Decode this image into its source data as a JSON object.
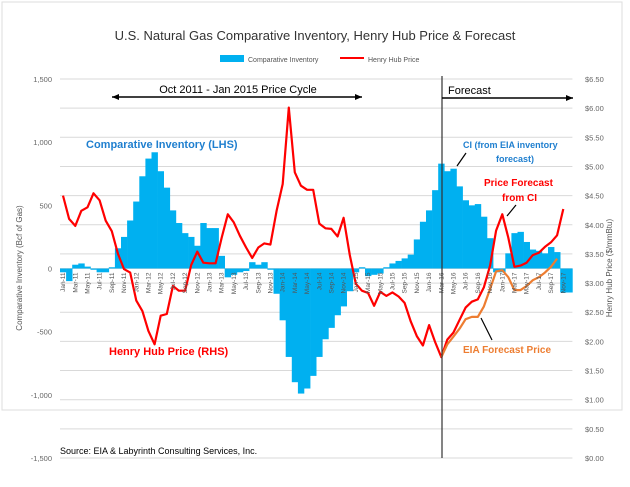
{
  "chart_data": {
    "type": "bar+line",
    "title": "U.S. Natural Gas Comparative Inventory, Henry Hub Price & Forecast",
    "legend": [
      "Comparative Inventory",
      "Henry Hub Price"
    ],
    "legend_placement": "top",
    "ylabel": "Comparative Inventory (Bcf of Gas)",
    "y2label": "Henry Hub Price ($/mmBtu)",
    "ylim": [
      -1500,
      1500
    ],
    "y2lim": [
      0,
      6.5
    ],
    "yticks": [
      "1,500",
      "1,000",
      "500",
      "0",
      "-500",
      "-1,000",
      "-1,500"
    ],
    "y2ticks": [
      "$6.50",
      "$6.00",
      "$5.50",
      "$5.00",
      "$4.50",
      "$4.00",
      "$3.50",
      "$3.00",
      "$2.50",
      "$2.00",
      "$1.50",
      "$1.00",
      "$0.50",
      "$0.00"
    ],
    "start_month": "Jan-11",
    "xtick_labels": [
      "Jan-11",
      "Mar-11",
      "May-11",
      "Jul-11",
      "Sep-11",
      "Nov-11",
      "Jan-12",
      "Mar-12",
      "May-12",
      "Jul-12",
      "Sep-12",
      "Nov-12",
      "Jan-13",
      "Mar-13",
      "May-13",
      "Jul-13",
      "Sep-13",
      "Nov-13",
      "Jan-14",
      "Mar-14",
      "May-14",
      "Jul-14",
      "Sep-14",
      "Nov-14",
      "Jan-15",
      "Mar-15",
      "May-15",
      "Jul-15",
      "Sep-15",
      "Nov-15",
      "Jan-16",
      "Mar-16",
      "May-16",
      "Jul-16",
      "Sep-16",
      "Nov-16",
      "Jan-17",
      "Mar-17",
      "May-17",
      "Jul-17",
      "Sep-17",
      "Nov-17"
    ],
    "series": [
      {
        "name": "Comparative Inventory",
        "color": "#00b0f0",
        "values": [
          -30,
          -100,
          30,
          40,
          15,
          -10,
          -30,
          -30,
          10,
          160,
          250,
          380,
          530,
          730,
          870,
          920,
          770,
          640,
          460,
          360,
          280,
          250,
          180,
          360,
          320,
          320,
          100,
          -70,
          -50,
          -30,
          -20,
          50,
          30,
          50,
          -10,
          -200,
          -410,
          -700,
          -900,
          -990,
          -950,
          -850,
          -700,
          -560,
          -470,
          -370,
          -300,
          -180,
          -30,
          10,
          -60,
          -50,
          -40,
          10,
          40,
          60,
          80,
          110,
          230,
          370,
          460,
          620,
          830,
          770,
          790,
          650,
          540,
          500,
          510,
          410,
          240,
          -30,
          -30,
          120,
          280,
          290,
          210,
          150,
          140,
          120,
          170,
          130,
          -190,
          -190
        ]
      },
      {
        "name": "Henry Hub Price",
        "color": "#ff0000",
        "values": [
          4.5,
          4.1,
          3.98,
          4.24,
          4.3,
          4.54,
          4.42,
          4.07,
          3.89,
          3.5,
          3.24,
          3.18,
          2.7,
          2.52,
          2.18,
          1.95,
          2.44,
          2.47,
          2.95,
          2.87,
          2.87,
          3.31,
          3.54,
          3.35,
          3.34,
          3.34,
          3.78,
          4.18,
          4.04,
          3.81,
          3.61,
          3.43,
          3.61,
          3.68,
          3.66,
          4.24,
          4.7,
          6.01,
          4.9,
          4.67,
          4.6,
          4.6,
          4.02,
          3.94,
          3.93,
          3.8,
          4.12,
          3.48,
          2.99,
          2.87,
          2.83,
          2.61,
          2.85,
          2.78,
          2.84,
          2.77,
          2.66,
          2.34,
          2.09,
          1.93,
          2.28,
          1.99,
          1.73,
          2.03,
          2.15,
          2.37,
          2.58,
          2.68,
          2.72,
          2.93,
          3.3,
          3.9,
          4.18,
          3.78,
          3.28,
          3.3,
          3.35,
          3.48,
          3.52,
          3.62,
          3.7,
          3.82,
          4.27
        ]
      },
      {
        "name": "EIA Forecast Price",
        "color": "#ed7d31",
        "start_index": 62,
        "values": [
          1.73,
          1.95,
          2.08,
          2.22,
          2.38,
          2.42,
          2.42,
          2.6,
          2.9,
          3.2,
          3.22,
          3.1,
          2.88,
          2.88,
          2.95,
          3.05,
          3.1,
          3.18,
          3.28,
          3.42
        ]
      }
    ],
    "annotations": {
      "cycle": "Oct 2011 - Jan 2015 Price Cycle",
      "forecast": "Forecast",
      "ci_lhs": "Comparative Inventory (LHS)",
      "hh_rhs": "Henry Hub Price (RHS)",
      "ci_forecast_1": "CI  (from EIA inventory",
      "ci_forecast_2": "forecast)",
      "price_forecast_1": "Price Forecast",
      "price_forecast_2": "from CI",
      "eia_forecast": "EIA Forecast Price",
      "source": "Source: EIA & Labyrinth Consulting Services, Inc."
    },
    "grid": true
  }
}
